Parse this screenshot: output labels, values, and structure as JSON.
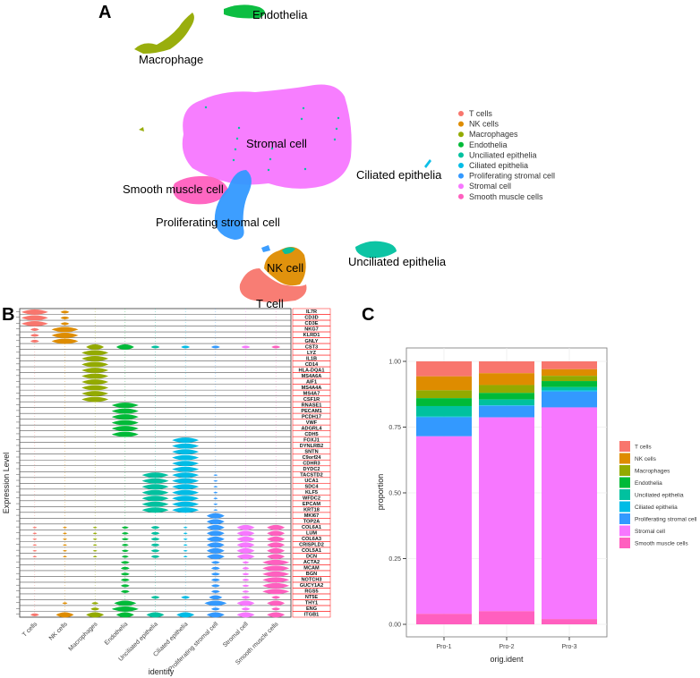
{
  "panels": {
    "a": "A",
    "b": "B",
    "c": "C"
  },
  "colors": {
    "T cells": "#F8766D",
    "NK cells": "#DE8C00",
    "Macrophages": "#93AA00",
    "Endothelia": "#00BA38",
    "Unciliated epithelia": "#00C19F",
    "Ciliated epithelia": "#00BCE6",
    "Proliferating stromal cell": "#3399FF",
    "Stromal cell": "#F777FF",
    "Smooth muscle cells": "#FF5FBF"
  },
  "umap": {
    "labels": [
      "Endothelia",
      "Macrophage",
      "Stromal cell",
      "Ciliated epithelia",
      "Smooth muscle cell",
      "Proliferating stromal cell",
      "NK cell",
      "Unciliated epithelia",
      "T cell"
    ],
    "legend": [
      "T cells",
      "NK cells",
      "Macrophages",
      "Endothelia",
      "Unciliated epithelia",
      "Ciliated epithelia",
      "Proliferating stromal cell",
      "Stromal cell",
      "Smooth muscle cells"
    ]
  },
  "violin": {
    "ylabel": "Expression Level",
    "xlabel": "identity",
    "groups": [
      "T cells",
      "NK cells",
      "Macrophages",
      "Endothelia",
      "Unciliated epithelia",
      "Ciliated epithelia",
      "Proliferating stromal cell",
      "Stromal cell",
      "Smooth muscle cells"
    ],
    "genes": [
      "IL7R",
      "CD3D",
      "CD3E",
      "NKG7",
      "KLRD1",
      "GNLY",
      "CST3",
      "LYZ",
      "IL1B",
      "CD14",
      "HLA-DQA1",
      "MS4A6A",
      "AIF1",
      "MS4A4A",
      "MS4A7",
      "CSF1R",
      "RNASE1",
      "PECAM1",
      "PCDH17",
      "VWF",
      "ADGRL4",
      "CDH5",
      "FOXJ1",
      "DYNLRB2",
      "SNTN",
      "C9orf24",
      "CDHR3",
      "DYDC2",
      "TACSTD2",
      "UCA1",
      "SDC4",
      "KLF5",
      "WFDC2",
      "EPCAM",
      "KRT18",
      "MKI67",
      "TOP2A",
      "COL6A1",
      "LUM",
      "COL6A3",
      "CRISPLD2",
      "COL5A1",
      "DCN",
      "ACTA2",
      "MCAM",
      "BGN",
      "NOTCH3",
      "GUCY1A2",
      "RGS5",
      "NT5E",
      "THY1",
      "ENG",
      "ITGB1"
    ]
  },
  "chart_data": {
    "type": "bar",
    "stacked": true,
    "xlabel": "orig.ident",
    "ylabel": "proportion",
    "categories": [
      "Pro-1",
      "Pro-2",
      "Pro-3"
    ],
    "yticks": [
      "0.00",
      "0.25",
      "0.50",
      "0.75",
      "1.00"
    ],
    "ylim": [
      0,
      1
    ],
    "grid": true,
    "legend_position": "right",
    "series": [
      {
        "name": "T cells",
        "values": [
          0.057,
          0.045,
          0.03
        ]
      },
      {
        "name": "NK cells",
        "values": [
          0.053,
          0.045,
          0.025
        ]
      },
      {
        "name": "Macrophages",
        "values": [
          0.03,
          0.03,
          0.02
        ]
      },
      {
        "name": "Endothelia",
        "values": [
          0.03,
          0.025,
          0.023
        ]
      },
      {
        "name": "Unciliated epithelia",
        "values": [
          0.04,
          0.022,
          0.012
        ]
      },
      {
        "name": "Ciliated epithelia",
        "values": [
          0.003,
          0.002,
          0.005
        ]
      },
      {
        "name": "Proliferating stromal cell",
        "values": [
          0.072,
          0.044,
          0.06
        ]
      },
      {
        "name": "Stromal cell",
        "values": [
          0.675,
          0.737,
          0.805
        ]
      },
      {
        "name": "Smooth muscle cells",
        "values": [
          0.04,
          0.05,
          0.02
        ]
      }
    ]
  }
}
